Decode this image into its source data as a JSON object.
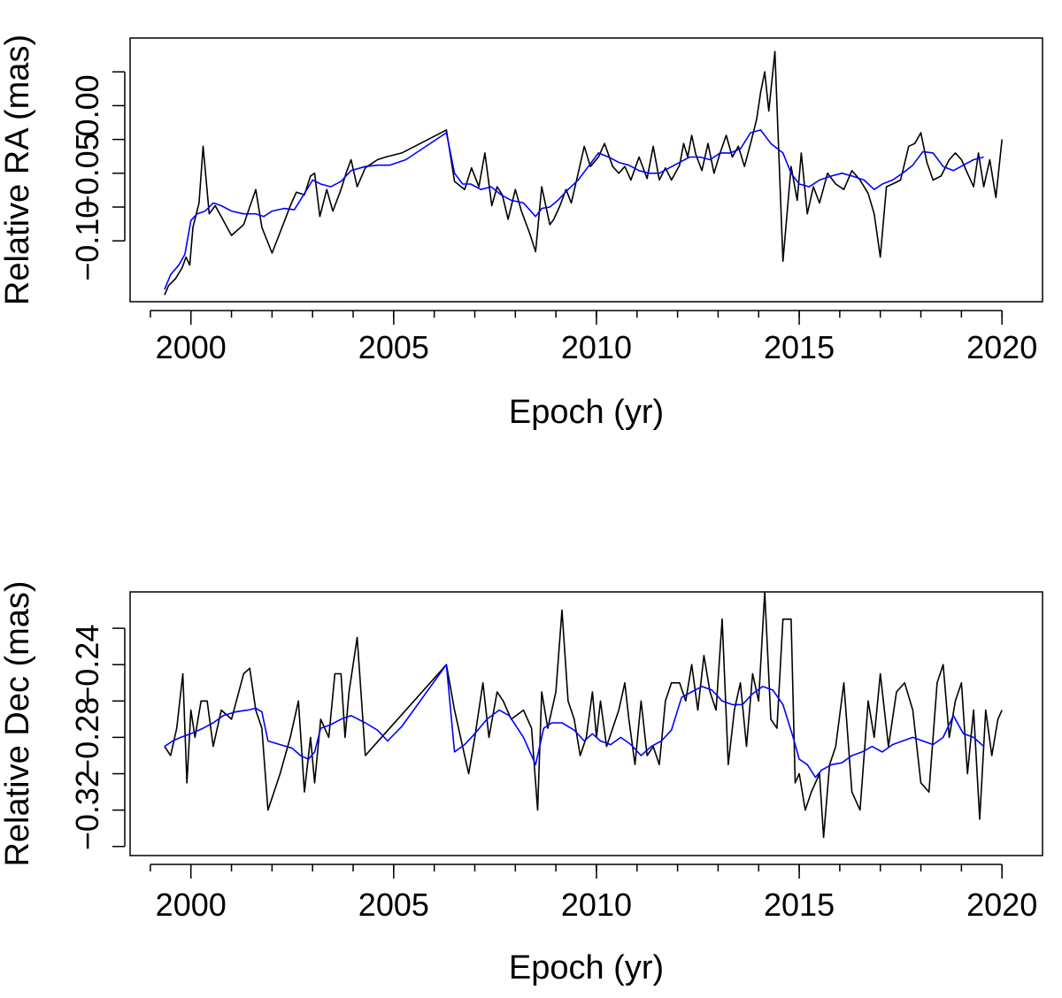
{
  "chart_data": [
    {
      "type": "line",
      "title": "",
      "xlabel": "Epoch (yr)",
      "ylabel": "Relative RA (mas)",
      "xlim": [
        1998.5,
        2021.0
      ],
      "ylim": [
        -0.145,
        0.05
      ],
      "x_ticks": [
        2000,
        2005,
        2010,
        2015,
        2020
      ],
      "x_minor_ticks": [
        1999,
        2000,
        2001,
        2002,
        2003,
        2004,
        2005,
        2006,
        2007,
        2008,
        2009,
        2010,
        2011,
        2012,
        2013,
        2014,
        2015,
        2016,
        2017,
        2018,
        2019,
        2020
      ],
      "y_ticks": [
        -0.1,
        -0.075,
        -0.05,
        -0.025,
        0.0,
        0.025
      ],
      "y_tick_labels": [
        "-0.10",
        "",
        "-0.05",
        "",
        "0.00",
        ""
      ],
      "grid": false,
      "series": [
        {
          "color": "#000000",
          "x": [
            1999.35,
            1999.45,
            1999.62,
            1999.78,
            1999.88,
            1999.97,
            2000.05,
            2000.2,
            2000.3,
            2000.45,
            2000.6,
            2000.8,
            2001.0,
            2001.3,
            2001.6,
            2001.75,
            2002.0,
            2002.3,
            2002.45,
            2002.6,
            2002.8,
            2002.95,
            2003.05,
            2003.18,
            2003.35,
            2003.5,
            2003.7,
            2003.85,
            2003.95,
            2004.1,
            2004.3,
            2004.6,
            2004.8,
            2005.2,
            2006.3,
            2006.5,
            2006.75,
            2006.92,
            2007.1,
            2007.25,
            2007.42,
            2007.55,
            2007.68,
            2007.82,
            2008.0,
            2008.15,
            2008.35,
            2008.5,
            2008.65,
            2008.85,
            2008.95,
            2009.1,
            2009.25,
            2009.38,
            2009.55,
            2009.7,
            2009.85,
            2010.05,
            2010.2,
            2010.4,
            2010.55,
            2010.7,
            2010.85,
            2011.05,
            2011.25,
            2011.4,
            2011.55,
            2011.7,
            2011.85,
            2012.05,
            2012.15,
            2012.25,
            2012.35,
            2012.45,
            2012.6,
            2012.75,
            2012.9,
            2013.05,
            2013.2,
            2013.35,
            2013.5,
            2013.65,
            2013.8,
            2013.95,
            2014.05,
            2014.15,
            2014.25,
            2014.4,
            2014.6,
            2014.8,
            2014.95,
            2015.05,
            2015.2,
            2015.35,
            2015.5,
            2015.7,
            2015.9,
            2016.1,
            2016.3,
            2016.5,
            2016.7,
            2016.85,
            2017.0,
            2017.15,
            2017.3,
            2017.5,
            2017.7,
            2017.85,
            2018.0,
            2018.15,
            2018.3,
            2018.5,
            2018.7,
            2018.85,
            2019.0,
            2019.15,
            2019.3,
            2019.42,
            2019.55,
            2019.7,
            2019.85,
            2020.0
          ],
          "y": [
            -0.14,
            -0.133,
            -0.128,
            -0.12,
            -0.112,
            -0.118,
            -0.09,
            -0.072,
            -0.03,
            -0.08,
            -0.074,
            -0.085,
            -0.096,
            -0.088,
            -0.062,
            -0.09,
            -0.109,
            -0.086,
            -0.074,
            -0.064,
            -0.066,
            -0.052,
            -0.05,
            -0.082,
            -0.062,
            -0.078,
            -0.062,
            -0.048,
            -0.04,
            -0.06,
            -0.046,
            -0.04,
            -0.038,
            -0.035,
            -0.018,
            -0.056,
            -0.062,
            -0.046,
            -0.06,
            -0.035,
            -0.074,
            -0.06,
            -0.066,
            -0.084,
            -0.062,
            -0.078,
            -0.094,
            -0.108,
            -0.06,
            -0.088,
            -0.084,
            -0.074,
            -0.062,
            -0.072,
            -0.05,
            -0.03,
            -0.045,
            -0.038,
            -0.028,
            -0.045,
            -0.05,
            -0.045,
            -0.055,
            -0.038,
            -0.054,
            -0.03,
            -0.055,
            -0.046,
            -0.055,
            -0.044,
            -0.028,
            -0.038,
            -0.022,
            -0.036,
            -0.048,
            -0.028,
            -0.05,
            -0.035,
            -0.022,
            -0.038,
            -0.03,
            -0.045,
            -0.028,
            -0.01,
            0.01,
            0.025,
            -0.004,
            0.04,
            -0.115,
            -0.045,
            -0.07,
            -0.035,
            -0.08,
            -0.06,
            -0.072,
            -0.05,
            -0.058,
            -0.062,
            -0.048,
            -0.055,
            -0.065,
            -0.08,
            -0.112,
            -0.06,
            -0.058,
            -0.055,
            -0.03,
            -0.028,
            -0.02,
            -0.042,
            -0.055,
            -0.052,
            -0.04,
            -0.035,
            -0.04,
            -0.05,
            -0.06,
            -0.035,
            -0.06,
            -0.04,
            -0.068,
            -0.025
          ]
        },
        {
          "color": "#0000ff",
          "x": [
            1999.35,
            1999.5,
            1999.7,
            1999.85,
            2000.0,
            2000.15,
            2000.35,
            2000.55,
            2000.75,
            2001.0,
            2001.3,
            2001.6,
            2001.8,
            2002.0,
            2002.3,
            2002.55,
            2002.8,
            2003.0,
            2003.2,
            2003.45,
            2003.7,
            2003.95,
            2004.3,
            2004.6,
            2004.9,
            2005.3,
            2006.3,
            2006.5,
            2006.7,
            2006.9,
            2007.15,
            2007.4,
            2007.65,
            2007.9,
            2008.2,
            2008.5,
            2008.65,
            2008.85,
            2009.05,
            2009.3,
            2009.55,
            2009.8,
            2010.05,
            2010.3,
            2010.55,
            2010.8,
            2011.05,
            2011.3,
            2011.55,
            2011.8,
            2012.05,
            2012.3,
            2012.55,
            2012.8,
            2013.05,
            2013.3,
            2013.55,
            2013.8,
            2014.05,
            2014.3,
            2014.6,
            2014.8,
            2015.0,
            2015.25,
            2015.5,
            2015.8,
            2016.05,
            2016.3,
            2016.6,
            2016.85,
            2017.05,
            2017.3,
            2017.55,
            2017.8,
            2018.05,
            2018.3,
            2018.55,
            2018.8,
            2019.05,
            2019.3,
            2019.55
          ],
          "y": [
            -0.136,
            -0.125,
            -0.118,
            -0.11,
            -0.085,
            -0.08,
            -0.078,
            -0.072,
            -0.074,
            -0.078,
            -0.08,
            -0.08,
            -0.082,
            -0.078,
            -0.076,
            -0.077,
            -0.065,
            -0.055,
            -0.058,
            -0.06,
            -0.056,
            -0.048,
            -0.045,
            -0.044,
            -0.044,
            -0.04,
            -0.02,
            -0.05,
            -0.058,
            -0.058,
            -0.062,
            -0.06,
            -0.066,
            -0.07,
            -0.072,
            -0.082,
            -0.076,
            -0.075,
            -0.07,
            -0.062,
            -0.055,
            -0.045,
            -0.035,
            -0.038,
            -0.042,
            -0.044,
            -0.048,
            -0.05,
            -0.05,
            -0.046,
            -0.042,
            -0.038,
            -0.038,
            -0.04,
            -0.035,
            -0.035,
            -0.032,
            -0.02,
            -0.018,
            -0.028,
            -0.035,
            -0.05,
            -0.058,
            -0.06,
            -0.055,
            -0.052,
            -0.05,
            -0.052,
            -0.055,
            -0.062,
            -0.058,
            -0.055,
            -0.05,
            -0.044,
            -0.034,
            -0.035,
            -0.045,
            -0.048,
            -0.044,
            -0.04,
            -0.038
          ]
        }
      ]
    },
    {
      "type": "line",
      "title": "",
      "xlabel": "Epoch (yr)",
      "ylabel": "Relative Dec (mas)",
      "xlim": [
        1998.5,
        2021.0
      ],
      "ylim": [
        -0.345,
        -0.2
      ],
      "x_ticks": [
        2000,
        2005,
        2010,
        2015,
        2020
      ],
      "x_minor_ticks": [
        1999,
        2000,
        2001,
        2002,
        2003,
        2004,
        2005,
        2006,
        2007,
        2008,
        2009,
        2010,
        2011,
        2012,
        2013,
        2014,
        2015,
        2016,
        2017,
        2018,
        2019,
        2020
      ],
      "y_ticks": [
        -0.34,
        -0.32,
        -0.3,
        -0.28,
        -0.26,
        -0.24,
        -0.22
      ],
      "y_tick_labels": [
        "",
        "-0.32",
        "",
        "-0.28",
        "",
        "-0.24",
        ""
      ],
      "grid": false,
      "series": [
        {
          "color": "#000000",
          "x": [
            1999.35,
            1999.5,
            1999.65,
            1999.8,
            1999.9,
            2000.0,
            2000.1,
            2000.25,
            2000.4,
            2000.55,
            2000.75,
            2001.0,
            2001.3,
            2001.45,
            2001.6,
            2001.75,
            2001.9,
            2002.2,
            2002.45,
            2002.65,
            2002.8,
            2002.95,
            2003.05,
            2003.2,
            2003.4,
            2003.55,
            2003.7,
            2003.8,
            2003.9,
            2004.1,
            2004.3,
            2004.5,
            2006.3,
            2006.5,
            2006.7,
            2006.85,
            2007.0,
            2007.2,
            2007.35,
            2007.55,
            2007.7,
            2007.9,
            2008.2,
            2008.4,
            2008.55,
            2008.65,
            2008.8,
            2009.0,
            2009.15,
            2009.3,
            2009.45,
            2009.6,
            2009.75,
            2009.9,
            2010.0,
            2010.1,
            2010.25,
            2010.4,
            2010.55,
            2010.7,
            2010.8,
            2010.95,
            2011.1,
            2011.25,
            2011.4,
            2011.55,
            2011.7,
            2011.85,
            2012.05,
            2012.2,
            2012.35,
            2012.5,
            2012.65,
            2012.8,
            2012.95,
            2013.1,
            2013.25,
            2013.4,
            2013.55,
            2013.7,
            2013.85,
            2014.0,
            2014.15,
            2014.3,
            2014.45,
            2014.6,
            2014.8,
            2014.9,
            2015.0,
            2015.15,
            2015.3,
            2015.5,
            2015.6,
            2015.75,
            2015.9,
            2016.1,
            2016.3,
            2016.5,
            2016.7,
            2016.85,
            2017.0,
            2017.2,
            2017.4,
            2017.6,
            2017.8,
            2018.0,
            2018.2,
            2018.4,
            2018.55,
            2018.7,
            2018.85,
            2019.0,
            2019.15,
            2019.3,
            2019.45,
            2019.6,
            2019.75,
            2019.9,
            2020.0
          ],
          "y": [
            -0.285,
            -0.29,
            -0.275,
            -0.245,
            -0.305,
            -0.265,
            -0.28,
            -0.26,
            -0.26,
            -0.285,
            -0.265,
            -0.27,
            -0.245,
            -0.242,
            -0.265,
            -0.275,
            -0.32,
            -0.3,
            -0.28,
            -0.26,
            -0.31,
            -0.28,
            -0.305,
            -0.27,
            -0.28,
            -0.245,
            -0.245,
            -0.28,
            -0.255,
            -0.225,
            -0.29,
            -0.285,
            -0.24,
            -0.265,
            -0.285,
            -0.3,
            -0.28,
            -0.25,
            -0.28,
            -0.255,
            -0.26,
            -0.27,
            -0.265,
            -0.275,
            -0.32,
            -0.255,
            -0.275,
            -0.255,
            -0.21,
            -0.26,
            -0.27,
            -0.29,
            -0.28,
            -0.255,
            -0.28,
            -0.26,
            -0.285,
            -0.275,
            -0.265,
            -0.25,
            -0.27,
            -0.295,
            -0.26,
            -0.29,
            -0.285,
            -0.295,
            -0.26,
            -0.25,
            -0.25,
            -0.26,
            -0.24,
            -0.265,
            -0.235,
            -0.255,
            -0.265,
            -0.215,
            -0.295,
            -0.265,
            -0.25,
            -0.285,
            -0.245,
            -0.26,
            -0.2,
            -0.27,
            -0.275,
            -0.215,
            -0.215,
            -0.305,
            -0.3,
            -0.32,
            -0.31,
            -0.3,
            -0.335,
            -0.295,
            -0.285,
            -0.25,
            -0.31,
            -0.32,
            -0.26,
            -0.28,
            -0.245,
            -0.285,
            -0.255,
            -0.25,
            -0.265,
            -0.305,
            -0.31,
            -0.25,
            -0.24,
            -0.28,
            -0.26,
            -0.25,
            -0.3,
            -0.265,
            -0.325,
            -0.265,
            -0.29,
            -0.27,
            -0.265
          ]
        },
        {
          "color": "#0000ff",
          "x": [
            1999.35,
            1999.55,
            1999.75,
            2000.0,
            2000.3,
            2000.55,
            2000.8,
            2001.1,
            2001.4,
            2001.6,
            2001.75,
            2001.9,
            2002.2,
            2002.5,
            2002.7,
            2002.9,
            2003.05,
            2003.2,
            2003.45,
            2003.7,
            2003.95,
            2004.3,
            2004.6,
            2004.85,
            2005.2,
            2006.3,
            2006.5,
            2006.75,
            2007.0,
            2007.3,
            2007.6,
            2007.85,
            2008.2,
            2008.5,
            2008.7,
            2008.9,
            2009.15,
            2009.45,
            2009.7,
            2009.9,
            2010.1,
            2010.35,
            2010.6,
            2010.85,
            2011.1,
            2011.35,
            2011.6,
            2011.85,
            2012.1,
            2012.35,
            2012.6,
            2012.85,
            2013.1,
            2013.35,
            2013.6,
            2013.85,
            2014.1,
            2014.35,
            2014.6,
            2014.85,
            2015.0,
            2015.2,
            2015.4,
            2015.55,
            2015.8,
            2016.05,
            2016.3,
            2016.55,
            2016.8,
            2017.05,
            2017.3,
            2017.55,
            2017.8,
            2018.05,
            2018.3,
            2018.55,
            2018.8,
            2019.05,
            2019.3,
            2019.55
          ],
          "y": [
            -0.285,
            -0.282,
            -0.28,
            -0.278,
            -0.275,
            -0.272,
            -0.268,
            -0.266,
            -0.265,
            -0.264,
            -0.266,
            -0.282,
            -0.284,
            -0.286,
            -0.29,
            -0.292,
            -0.288,
            -0.275,
            -0.273,
            -0.27,
            -0.268,
            -0.272,
            -0.276,
            -0.282,
            -0.274,
            -0.24,
            -0.288,
            -0.284,
            -0.278,
            -0.27,
            -0.265,
            -0.268,
            -0.28,
            -0.295,
            -0.275,
            -0.272,
            -0.272,
            -0.276,
            -0.282,
            -0.278,
            -0.282,
            -0.284,
            -0.28,
            -0.284,
            -0.29,
            -0.285,
            -0.282,
            -0.276,
            -0.258,
            -0.255,
            -0.252,
            -0.254,
            -0.26,
            -0.262,
            -0.262,
            -0.256,
            -0.252,
            -0.254,
            -0.262,
            -0.28,
            -0.292,
            -0.295,
            -0.302,
            -0.298,
            -0.295,
            -0.294,
            -0.29,
            -0.288,
            -0.285,
            -0.288,
            -0.284,
            -0.282,
            -0.28,
            -0.282,
            -0.284,
            -0.28,
            -0.268,
            -0.278,
            -0.28,
            -0.285
          ]
        }
      ]
    }
  ]
}
